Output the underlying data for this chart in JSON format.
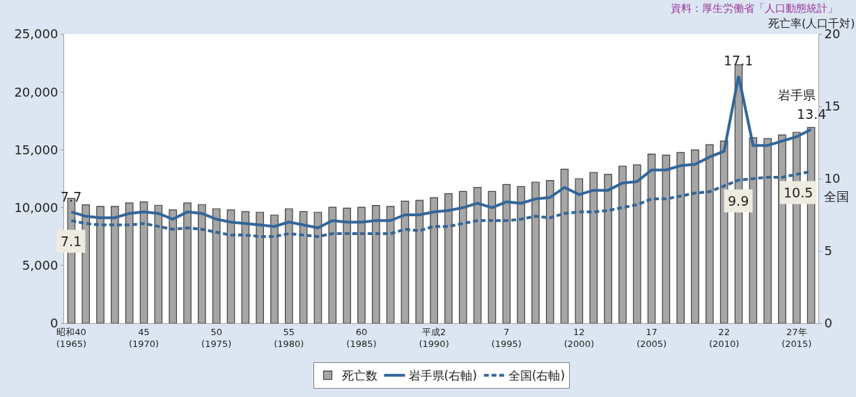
{
  "chart_data": {
    "type": "bar",
    "categories": [
      "昭和40\n(1965)",
      null,
      null,
      null,
      null,
      "45\n(1970)",
      null,
      null,
      null,
      null,
      "50\n(1975)",
      null,
      null,
      null,
      null,
      "55\n(1980)",
      null,
      null,
      null,
      null,
      "60\n(1985)",
      null,
      null,
      null,
      null,
      "平成2\n(1990)",
      null,
      null,
      null,
      null,
      "7\n(1995)",
      null,
      null,
      null,
      null,
      "12\n(2000)",
      null,
      null,
      null,
      null,
      "17\n(2005)",
      null,
      null,
      null,
      null,
      "22\n(2010)",
      null,
      null,
      null,
      null,
      "27年\n(2015)",
      null
    ],
    "series": [
      {
        "name": "死亡数",
        "color": "#a6a6a6",
        "values": [
          10800,
          10240,
          10100,
          10100,
          10400,
          10500,
          10200,
          9800,
          10400,
          10260,
          9900,
          9800,
          9650,
          9600,
          9360,
          9900,
          9650,
          9600,
          10030,
          9950,
          10030,
          10180,
          10100,
          10550,
          10630,
          10860,
          11200,
          11400,
          11740,
          11400,
          12000,
          11820,
          12200,
          12340,
          13320,
          12500,
          13040,
          12870,
          13570,
          13700,
          14620,
          14540,
          14760,
          14990,
          15440,
          15750,
          22350,
          16040,
          15960,
          16280,
          16510,
          16920
        ]
      },
      {
        "name": "岩手県(右軸)",
        "type": "line",
        "axis": "y2",
        "color": "#336699",
        "line_style": "solid",
        "values": [
          7.7,
          7.4,
          7.3,
          7.3,
          7.6,
          7.7,
          7.6,
          7.2,
          7.7,
          7.6,
          7.2,
          7.0,
          6.9,
          6.8,
          6.7,
          7.0,
          6.8,
          6.6,
          7.1,
          7.0,
          7.0,
          7.1,
          7.1,
          7.5,
          7.5,
          7.7,
          7.8,
          8.0,
          8.3,
          8.0,
          8.4,
          8.3,
          8.6,
          8.7,
          9.4,
          8.9,
          9.2,
          9.2,
          9.7,
          9.8,
          10.6,
          10.6,
          10.9,
          11.0,
          11.5,
          11.9,
          17.1,
          12.3,
          12.3,
          12.6,
          12.9,
          13.4
        ],
        "value_labels": [
          "7.7",
          null,
          null,
          null,
          null,
          null,
          null,
          null,
          null,
          null,
          null,
          null,
          null,
          null,
          null,
          null,
          null,
          null,
          null,
          null,
          null,
          null,
          null,
          null,
          null,
          null,
          null,
          null,
          null,
          null,
          null,
          null,
          null,
          null,
          null,
          null,
          null,
          null,
          null,
          null,
          null,
          null,
          null,
          null,
          null,
          null,
          "17.1",
          null,
          null,
          null,
          null,
          "13.4"
        ]
      },
      {
        "name": "全国(右軸)",
        "type": "line",
        "axis": "y2",
        "color": "#336699",
        "line_style": "dashed",
        "values": [
          7.1,
          6.9,
          6.8,
          6.8,
          6.8,
          6.9,
          6.7,
          6.5,
          6.6,
          6.5,
          6.3,
          6.1,
          6.1,
          6.0,
          6.0,
          6.2,
          6.1,
          6.0,
          6.2,
          6.2,
          6.2,
          6.2,
          6.2,
          6.5,
          6.4,
          6.7,
          6.7,
          6.9,
          7.1,
          7.1,
          7.1,
          7.2,
          7.4,
          7.3,
          7.6,
          7.7,
          7.7,
          7.8,
          8.0,
          8.2,
          8.6,
          8.6,
          8.8,
          9.0,
          9.1,
          9.5,
          9.9,
          10.0,
          10.1,
          10.1,
          10.3,
          10.5
        ],
        "value_labels": [
          "7.1",
          null,
          null,
          null,
          null,
          null,
          null,
          null,
          null,
          null,
          null,
          null,
          null,
          null,
          null,
          null,
          null,
          null,
          null,
          null,
          null,
          null,
          null,
          null,
          null,
          null,
          null,
          null,
          null,
          null,
          null,
          null,
          null,
          null,
          null,
          null,
          null,
          null,
          null,
          null,
          null,
          null,
          null,
          null,
          null,
          null,
          "9.9",
          null,
          null,
          null,
          null,
          "10.5"
        ]
      }
    ],
    "y2label": "死亡率(人口千対)",
    "ylim": [
      0,
      25000
    ],
    "yticks": [
      0,
      {
        "value": 5000,
        "label": "5,000"
      },
      {
        "value": 10000,
        "label": "10,000"
      },
      {
        "value": 15000,
        "label": "15,000"
      },
      {
        "value": 20000,
        "label": "20,000"
      },
      {
        "value": 25000,
        "label": "25,000"
      }
    ],
    "y2lim": [
      0,
      20
    ],
    "y2ticks": [
      0,
      5,
      10,
      15,
      20
    ],
    "legend": "bottom",
    "annotations": [
      "資料：厚生労働省「人口動態統計」",
      "岩手県",
      "全国"
    ]
  }
}
